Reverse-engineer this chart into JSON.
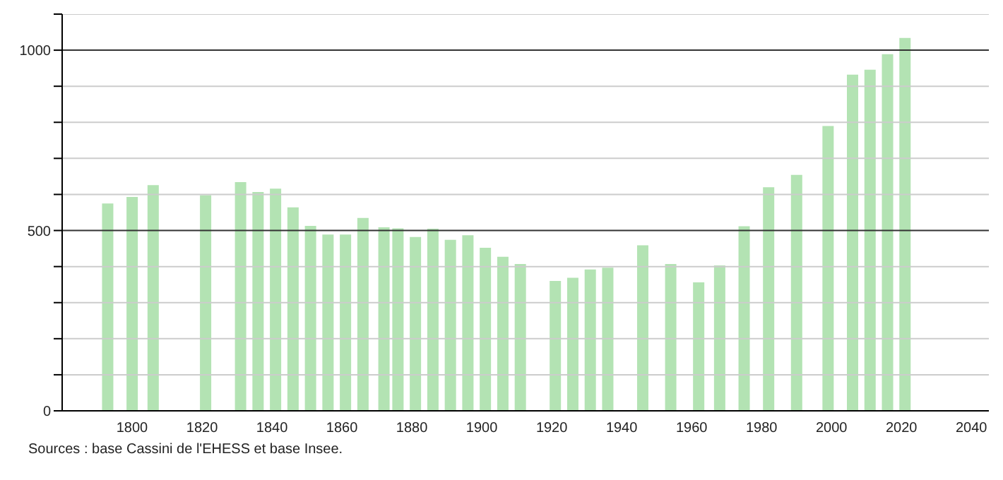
{
  "chart_data": {
    "type": "bar",
    "x": [
      1793,
      1800,
      1806,
      1821,
      1831,
      1836,
      1841,
      1846,
      1851,
      1856,
      1861,
      1866,
      1872,
      1876,
      1881,
      1886,
      1891,
      1896,
      1901,
      1906,
      1911,
      1921,
      1926,
      1931,
      1936,
      1946,
      1954,
      1962,
      1968,
      1975,
      1982,
      1990,
      1999,
      2006,
      2011,
      2016,
      2021
    ],
    "values": [
      575,
      593,
      626,
      598,
      634,
      607,
      616,
      564,
      513,
      489,
      489,
      535,
      509,
      506,
      482,
      505,
      474,
      487,
      452,
      427,
      407,
      360,
      369,
      392,
      397,
      459,
      407,
      356,
      403,
      512,
      620,
      654,
      790,
      932,
      946,
      989,
      1034
    ],
    "color": "#b3e3b3",
    "xlim": [
      1780,
      2045
    ],
    "xticks": [
      1800,
      1820,
      1840,
      1860,
      1880,
      1900,
      1920,
      1940,
      1960,
      1980,
      2000,
      2020,
      2040
    ],
    "ylim": [
      0,
      1100
    ],
    "yticks": [
      0,
      {
        "value": 100,
        "label": null
      },
      {
        "value": 200,
        "label": null
      },
      {
        "value": 300,
        "label": null
      },
      {
        "value": 400,
        "label": null
      },
      500,
      {
        "value": 600,
        "label": null
      },
      {
        "value": 700,
        "label": null
      },
      {
        "value": 800,
        "label": null
      },
      {
        "value": 900,
        "label": null
      },
      1000,
      {
        "value": 1100,
        "label": null
      }
    ],
    "grid": "y",
    "annotations": [
      "Sources : base Cassini de l'EHESS et base Insee."
    ]
  }
}
